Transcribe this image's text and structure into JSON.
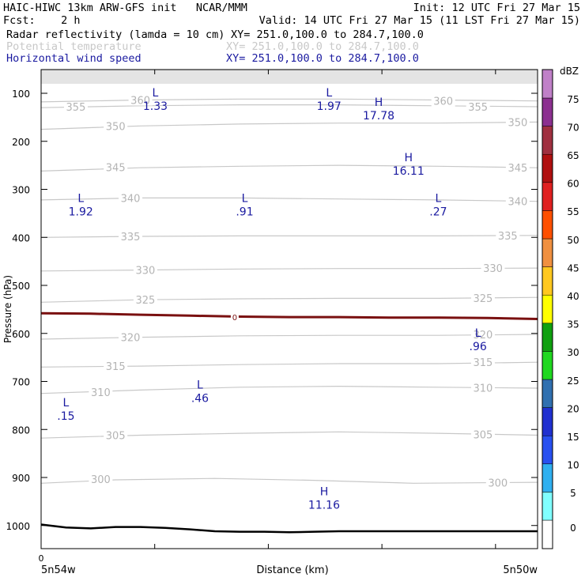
{
  "header": {
    "line1_left": "HAIC-HIWC 13km ARW-GFS init   NCAR/MMM",
    "line1_right": "Init: 12 UTC Fri 27 Mar 15",
    "line2_left": "Fcst:    2 h",
    "line2_right": "Valid: 14 UTC Fri 27 Mar 15 (11 LST Fri 27 Mar 15)",
    "fields": [
      {
        "name": "Radar reflectivity (lamda = 10 cm)",
        "xy": "XY= 251.0,100.0 to 284.7,100.0",
        "color": "#000000"
      },
      {
        "name": "Potential temperature",
        "xy": "XY= 251.0,100.0 to 284.7,100.0",
        "color": "#c8c8c8"
      },
      {
        "name": "Horizontal wind speed",
        "xy": "XY= 251.0,100.0 to 284.7,100.0",
        "color": "#1a1aa0"
      }
    ]
  },
  "chart_data": {
    "type": "line",
    "title": "",
    "xlabel": "Distance (km)",
    "ylabel": "Pressure (hPa)",
    "x_tick_label": "0",
    "x_left_label": "5n54w",
    "x_right_label": "5n50w",
    "yticks": [
      100,
      200,
      300,
      400,
      500,
      600,
      700,
      800,
      900,
      1000
    ],
    "ylim": [
      1050,
      50
    ],
    "xlim": [
      0,
      1
    ],
    "theta_contours": [
      {
        "level": "300",
        "x": [
          0,
          0.15,
          0.35,
          0.55,
          0.75,
          1.0
        ],
        "p": [
          912,
          905,
          902,
          906,
          912,
          910
        ],
        "labels": [
          {
            "x": 0.12,
            "p": 903
          },
          {
            "x": 0.92,
            "p": 911
          }
        ]
      },
      {
        "level": "305",
        "x": [
          0,
          0.2,
          0.4,
          0.6,
          0.8,
          1.0
        ],
        "p": [
          818,
          812,
          808,
          805,
          808,
          812
        ],
        "labels": [
          {
            "x": 0.15,
            "p": 812
          },
          {
            "x": 0.89,
            "p": 810
          }
        ]
      },
      {
        "level": "310",
        "x": [
          0,
          0.2,
          0.4,
          0.6,
          0.8,
          1.0
        ],
        "p": [
          725,
          718,
          712,
          710,
          712,
          714
        ],
        "labels": [
          {
            "x": 0.12,
            "p": 722
          },
          {
            "x": 0.89,
            "p": 713
          }
        ]
      },
      {
        "level": "315",
        "x": [
          0,
          0.2,
          0.4,
          0.6,
          0.8,
          1.0
        ],
        "p": [
          670,
          668,
          665,
          663,
          663,
          660
        ],
        "labels": [
          {
            "x": 0.15,
            "p": 668
          },
          {
            "x": 0.89,
            "p": 660
          }
        ]
      },
      {
        "level": "320",
        "x": [
          0,
          0.2,
          0.4,
          0.6,
          0.8,
          1.0
        ],
        "p": [
          612,
          608,
          605,
          604,
          604,
          602
        ],
        "labels": [
          {
            "x": 0.18,
            "p": 608
          },
          {
            "x": 0.89,
            "p": 602
          }
        ]
      },
      {
        "level": "325",
        "x": [
          0,
          0.2,
          0.4,
          0.6,
          0.8,
          1.0
        ],
        "p": [
          535,
          530,
          528,
          527,
          527,
          525
        ],
        "labels": [
          {
            "x": 0.21,
            "p": 530
          },
          {
            "x": 0.89,
            "p": 526
          }
        ]
      },
      {
        "level": "330",
        "x": [
          0,
          0.2,
          0.4,
          0.6,
          0.8,
          1.0
        ],
        "p": [
          470,
          468,
          466,
          465,
          465,
          464
        ],
        "labels": [
          {
            "x": 0.21,
            "p": 468
          },
          {
            "x": 0.91,
            "p": 464
          }
        ]
      },
      {
        "level": "335",
        "x": [
          0,
          0.2,
          0.4,
          0.6,
          0.8,
          1.0
        ],
        "p": [
          400,
          398,
          397,
          397,
          397,
          396
        ],
        "labels": [
          {
            "x": 0.18,
            "p": 398
          },
          {
            "x": 0.94,
            "p": 396
          }
        ]
      },
      {
        "level": "340",
        "x": [
          0,
          0.2,
          0.4,
          0.6,
          0.8,
          1.0
        ],
        "p": [
          322,
          318,
          318,
          320,
          322,
          325
        ],
        "labels": [
          {
            "x": 0.18,
            "p": 318
          },
          {
            "x": 0.96,
            "p": 325
          }
        ]
      },
      {
        "level": "345",
        "x": [
          0,
          0.2,
          0.4,
          0.6,
          0.8,
          1.0
        ],
        "p": [
          262,
          255,
          252,
          250,
          252,
          255
        ],
        "labels": [
          {
            "x": 0.15,
            "p": 254
          },
          {
            "x": 0.96,
            "p": 255
          }
        ]
      },
      {
        "level": "350",
        "x": [
          0,
          0.2,
          0.4,
          0.6,
          0.8,
          1.0
        ],
        "p": [
          175,
          168,
          164,
          162,
          162,
          160
        ],
        "labels": [
          {
            "x": 0.15,
            "p": 168
          },
          {
            "x": 0.96,
            "p": 160
          }
        ]
      },
      {
        "level": "355",
        "x": [
          0,
          0.2,
          0.4,
          0.6,
          0.8,
          1.0
        ],
        "p": [
          130,
          126,
          124,
          124,
          126,
          128
        ],
        "labels": [
          {
            "x": 0.07,
            "p": 128
          },
          {
            "x": 0.88,
            "p": 128
          }
        ]
      },
      {
        "level": "360",
        "x": [
          0,
          0.2,
          0.4,
          0.6,
          0.8,
          1.0
        ],
        "p": [
          118,
          114,
          112,
          112,
          114,
          116
        ],
        "labels": [
          {
            "x": 0.2,
            "p": 114
          },
          {
            "x": 0.81,
            "p": 116
          }
        ]
      }
    ],
    "dbz_contour": {
      "level": "0",
      "x": [
        0,
        0.1,
        0.2,
        0.3,
        0.4,
        0.5,
        0.6,
        0.7,
        0.8,
        0.9,
        1.0
      ],
      "p": [
        558,
        559,
        561,
        563,
        565,
        566,
        566,
        567,
        567,
        568,
        570
      ],
      "label_x": 0.39
    },
    "surface": {
      "x": [
        0,
        0.05,
        0.1,
        0.15,
        0.2,
        0.25,
        0.3,
        0.35,
        0.4,
        0.45,
        0.5,
        0.55,
        0.6,
        0.65,
        0.7,
        1.0
      ],
      "p": [
        998,
        1004,
        1006,
        1003,
        1003,
        1005,
        1008,
        1012,
        1013,
        1013,
        1014,
        1013,
        1012,
        1012,
        1012,
        1012
      ]
    },
    "wind_extrema": [
      {
        "type": "L",
        "value": "1.33",
        "x": 0.23,
        "p": 110
      },
      {
        "type": "L",
        "value": "1.97",
        "x": 0.58,
        "p": 110
      },
      {
        "type": "H",
        "value": "17.78",
        "x": 0.68,
        "p": 130
      },
      {
        "type": "H",
        "value": "16.11",
        "x": 0.74,
        "p": 245
      },
      {
        "type": "L",
        "value": "1.92",
        "x": 0.08,
        "p": 330
      },
      {
        "type": "L",
        "value": ".91",
        "x": 0.41,
        "p": 330
      },
      {
        "type": "L",
        "value": ".27",
        "x": 0.8,
        "p": 330
      },
      {
        "type": "L",
        "value": ".96",
        "x": 0.88,
        "p": 610
      },
      {
        "type": "L",
        "value": ".46",
        "x": 0.32,
        "p": 718
      },
      {
        "type": "L",
        "value": ".15",
        "x": 0.05,
        "p": 755
      },
      {
        "type": "H",
        "value": "11.16",
        "x": 0.57,
        "p": 940
      }
    ]
  },
  "colorbar": {
    "unit": "dBZ",
    "levels": [
      "0",
      "5",
      "10",
      "15",
      "20",
      "25",
      "30",
      "35",
      "40",
      "45",
      "50",
      "55",
      "60",
      "65",
      "70",
      "75"
    ],
    "colors": [
      "#ffffff",
      "#80ffff",
      "#30b0f0",
      "#2850f0",
      "#2030d0",
      "#3070b0",
      "#20d820",
      "#10a010",
      "#ffff00",
      "#ffc820",
      "#f09040",
      "#ff5000",
      "#e02020",
      "#b01010",
      "#a03040",
      "#8c3090",
      "#c080c8"
    ]
  }
}
